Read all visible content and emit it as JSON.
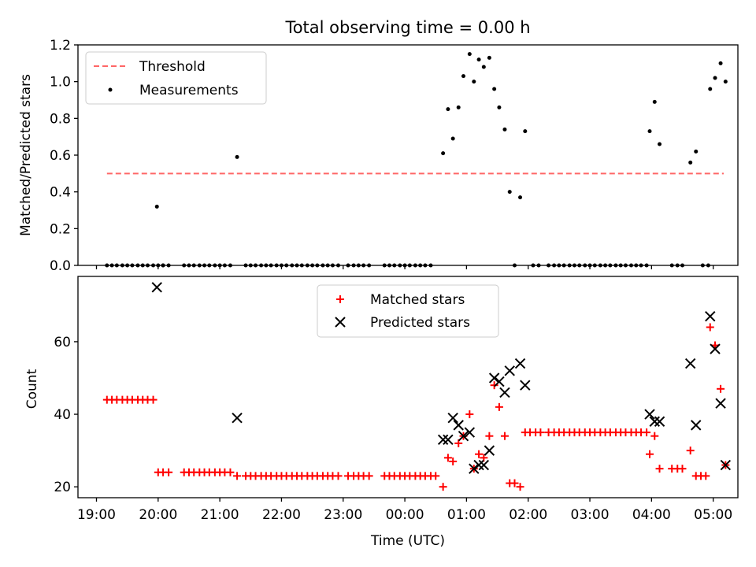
{
  "figure": {
    "title": "Total observing time = 0.00 h"
  },
  "chart_data": [
    {
      "type": "scatter",
      "title": "Total observing time = 0.00 h",
      "xlabel": "",
      "ylabel": "Matched/Predicted stars",
      "x_unit": "hours since 00:00 UTC (negative = previous evening)",
      "xlim": [
        -5.3,
        5.4
      ],
      "ylim": [
        0,
        1.2
      ],
      "yticks": [
        0.0,
        0.2,
        0.4,
        0.6,
        0.8,
        1.0,
        1.2
      ],
      "ytick_labels": [
        "0.0",
        "0.2",
        "0.4",
        "0.6",
        "0.8",
        "1.0",
        "1.2"
      ],
      "grid": false,
      "legend": {
        "position": "upper left",
        "entries": [
          {
            "label": "Threshold",
            "color": "#ff6666",
            "marker": "dashed-line"
          },
          {
            "label": "Measurements",
            "color": "#000000",
            "marker": "dot"
          }
        ]
      },
      "threshold": {
        "name": "Threshold",
        "value": 0.5,
        "x_start": -4.83,
        "x_end": 5.17,
        "color": "#ff6666"
      },
      "series": [
        {
          "name": "Measurements",
          "color": "#000000",
          "marker": "dot",
          "points": [
            [
              -4.83,
              0
            ],
            [
              -4.75,
              0
            ],
            [
              -4.67,
              0
            ],
            [
              -4.58,
              0
            ],
            [
              -4.5,
              0
            ],
            [
              -4.42,
              0
            ],
            [
              -4.33,
              0
            ],
            [
              -4.25,
              0
            ],
            [
              -4.17,
              0
            ],
            [
              -4.08,
              0
            ],
            [
              -4.0,
              0
            ],
            [
              -3.92,
              0
            ],
            [
              -4.02,
              0.32
            ],
            [
              -3.92,
              0
            ],
            [
              -3.83,
              0
            ],
            [
              -3.58,
              0
            ],
            [
              -3.5,
              0
            ],
            [
              -3.42,
              0
            ],
            [
              -3.33,
              0
            ],
            [
              -3.25,
              0
            ],
            [
              -3.17,
              0
            ],
            [
              -3.08,
              0
            ],
            [
              -3.0,
              0
            ],
            [
              -2.92,
              0
            ],
            [
              -2.83,
              0
            ],
            [
              -2.72,
              0.59
            ],
            [
              -2.58,
              0
            ],
            [
              -2.5,
              0
            ],
            [
              -2.42,
              0
            ],
            [
              -2.33,
              0
            ],
            [
              -2.25,
              0
            ],
            [
              -2.17,
              0
            ],
            [
              -2.08,
              0
            ],
            [
              -2.0,
              0
            ],
            [
              -1.92,
              0
            ],
            [
              -1.83,
              0
            ],
            [
              -1.75,
              0
            ],
            [
              -1.67,
              0
            ],
            [
              -1.58,
              0
            ],
            [
              -1.5,
              0
            ],
            [
              -1.42,
              0
            ],
            [
              -1.33,
              0
            ],
            [
              -1.25,
              0
            ],
            [
              -1.17,
              0
            ],
            [
              -1.08,
              0
            ],
            [
              -0.92,
              0
            ],
            [
              -0.83,
              0
            ],
            [
              -0.75,
              0
            ],
            [
              -0.67,
              0
            ],
            [
              -0.58,
              0
            ],
            [
              -0.33,
              0
            ],
            [
              -0.25,
              0
            ],
            [
              -0.17,
              0
            ],
            [
              -0.08,
              0
            ],
            [
              0.0,
              0
            ],
            [
              0.08,
              0
            ],
            [
              0.17,
              0
            ],
            [
              0.25,
              0
            ],
            [
              0.33,
              0
            ],
            [
              0.42,
              0
            ],
            [
              0.62,
              0.61
            ],
            [
              0.7,
              0.85
            ],
            [
              0.78,
              0.69
            ],
            [
              0.87,
              0.86
            ],
            [
              0.95,
              1.03
            ],
            [
              1.05,
              1.15
            ],
            [
              1.12,
              1.0
            ],
            [
              1.2,
              1.12
            ],
            [
              1.28,
              1.08
            ],
            [
              1.37,
              1.13
            ],
            [
              1.45,
              0.96
            ],
            [
              1.53,
              0.86
            ],
            [
              1.62,
              0.74
            ],
            [
              1.7,
              0.4
            ],
            [
              1.78,
              0.0
            ],
            [
              1.87,
              0.37
            ],
            [
              1.95,
              0.73
            ],
            [
              2.08,
              0
            ],
            [
              2.17,
              0
            ],
            [
              2.33,
              0
            ],
            [
              2.42,
              0
            ],
            [
              2.5,
              0
            ],
            [
              2.58,
              0
            ],
            [
              2.67,
              0
            ],
            [
              2.75,
              0
            ],
            [
              2.83,
              0
            ],
            [
              2.92,
              0
            ],
            [
              3.0,
              0
            ],
            [
              3.08,
              0
            ],
            [
              3.17,
              0
            ],
            [
              3.25,
              0
            ],
            [
              3.33,
              0
            ],
            [
              3.42,
              0
            ],
            [
              3.5,
              0
            ],
            [
              3.58,
              0
            ],
            [
              3.67,
              0
            ],
            [
              3.75,
              0
            ],
            [
              3.83,
              0
            ],
            [
              3.92,
              0
            ],
            [
              3.97,
              0.73
            ],
            [
              4.05,
              0.89
            ],
            [
              4.13,
              0.66
            ],
            [
              4.33,
              0
            ],
            [
              4.42,
              0
            ],
            [
              4.5,
              0
            ],
            [
              4.63,
              0.56
            ],
            [
              4.72,
              0.62
            ],
            [
              4.83,
              0
            ],
            [
              4.92,
              0
            ],
            [
              4.95,
              0.96
            ],
            [
              5.03,
              1.02
            ],
            [
              5.12,
              1.1
            ],
            [
              5.2,
              1.0
            ]
          ]
        }
      ]
    },
    {
      "type": "scatter",
      "title": "",
      "xlabel": "Time (UTC)",
      "ylabel": "Count",
      "x_unit": "hours since 00:00 UTC (negative = previous evening)",
      "xlim": [
        -5.3,
        5.4
      ],
      "ylim": [
        17,
        78
      ],
      "xticks": [
        -5,
        -4,
        -3,
        -2,
        -1,
        0,
        1,
        2,
        3,
        4,
        5
      ],
      "xtick_labels": [
        "19:00",
        "20:00",
        "21:00",
        "22:00",
        "23:00",
        "00:00",
        "01:00",
        "02:00",
        "03:00",
        "04:00",
        "05:00"
      ],
      "yticks": [
        20,
        40,
        60
      ],
      "ytick_labels": [
        "20",
        "40",
        "60"
      ],
      "grid": false,
      "legend": {
        "position": "upper center",
        "entries": [
          {
            "label": "Matched stars",
            "color": "#ff0000",
            "marker": "plus"
          },
          {
            "label": "Predicted stars",
            "color": "#000000",
            "marker": "x"
          }
        ]
      },
      "series": [
        {
          "name": "Matched stars",
          "color": "#ff0000",
          "marker": "plus",
          "points": [
            [
              -4.83,
              44
            ],
            [
              -4.75,
              44
            ],
            [
              -4.67,
              44
            ],
            [
              -4.58,
              44
            ],
            [
              -4.5,
              44
            ],
            [
              -4.42,
              44
            ],
            [
              -4.33,
              44
            ],
            [
              -4.25,
              44
            ],
            [
              -4.17,
              44
            ],
            [
              -4.08,
              44
            ],
            [
              -4.0,
              24
            ],
            [
              -3.92,
              24
            ],
            [
              -3.83,
              24
            ],
            [
              -3.58,
              24
            ],
            [
              -3.5,
              24
            ],
            [
              -3.42,
              24
            ],
            [
              -3.33,
              24
            ],
            [
              -3.25,
              24
            ],
            [
              -3.17,
              24
            ],
            [
              -3.08,
              24
            ],
            [
              -3.0,
              24
            ],
            [
              -2.92,
              24
            ],
            [
              -2.83,
              24
            ],
            [
              -2.72,
              23
            ],
            [
              -2.58,
              23
            ],
            [
              -2.5,
              23
            ],
            [
              -2.42,
              23
            ],
            [
              -2.33,
              23
            ],
            [
              -2.25,
              23
            ],
            [
              -2.17,
              23
            ],
            [
              -2.08,
              23
            ],
            [
              -2.0,
              23
            ],
            [
              -1.92,
              23
            ],
            [
              -1.83,
              23
            ],
            [
              -1.75,
              23
            ],
            [
              -1.67,
              23
            ],
            [
              -1.58,
              23
            ],
            [
              -1.5,
              23
            ],
            [
              -1.42,
              23
            ],
            [
              -1.33,
              23
            ],
            [
              -1.25,
              23
            ],
            [
              -1.17,
              23
            ],
            [
              -1.08,
              23
            ],
            [
              -0.92,
              23
            ],
            [
              -0.83,
              23
            ],
            [
              -0.75,
              23
            ],
            [
              -0.67,
              23
            ],
            [
              -0.58,
              23
            ],
            [
              -0.33,
              23
            ],
            [
              -0.25,
              23
            ],
            [
              -0.17,
              23
            ],
            [
              -0.08,
              23
            ],
            [
              0.0,
              23
            ],
            [
              0.08,
              23
            ],
            [
              0.17,
              23
            ],
            [
              0.25,
              23
            ],
            [
              0.33,
              23
            ],
            [
              0.42,
              23
            ],
            [
              0.5,
              23
            ],
            [
              0.62,
              20
            ],
            [
              0.7,
              28
            ],
            [
              0.78,
              27
            ],
            [
              0.87,
              32
            ],
            [
              0.95,
              34
            ],
            [
              1.05,
              40
            ],
            [
              1.12,
              25
            ],
            [
              1.2,
              29
            ],
            [
              1.28,
              28
            ],
            [
              1.37,
              34
            ],
            [
              1.45,
              48
            ],
            [
              1.53,
              42
            ],
            [
              1.62,
              34
            ],
            [
              1.7,
              21
            ],
            [
              1.78,
              21
            ],
            [
              1.87,
              20
            ],
            [
              1.95,
              35
            ],
            [
              2.03,
              35
            ],
            [
              2.12,
              35
            ],
            [
              2.2,
              35
            ],
            [
              2.33,
              35
            ],
            [
              2.42,
              35
            ],
            [
              2.5,
              35
            ],
            [
              2.58,
              35
            ],
            [
              2.67,
              35
            ],
            [
              2.75,
              35
            ],
            [
              2.83,
              35
            ],
            [
              2.92,
              35
            ],
            [
              3.0,
              35
            ],
            [
              3.08,
              35
            ],
            [
              3.17,
              35
            ],
            [
              3.25,
              35
            ],
            [
              3.33,
              35
            ],
            [
              3.42,
              35
            ],
            [
              3.5,
              35
            ],
            [
              3.58,
              35
            ],
            [
              3.67,
              35
            ],
            [
              3.75,
              35
            ],
            [
              3.83,
              35
            ],
            [
              3.92,
              35
            ],
            [
              3.97,
              29
            ],
            [
              4.05,
              34
            ],
            [
              4.13,
              25
            ],
            [
              4.33,
              25
            ],
            [
              4.42,
              25
            ],
            [
              4.5,
              25
            ],
            [
              4.63,
              30
            ],
            [
              4.72,
              23
            ],
            [
              4.8,
              23
            ],
            [
              4.88,
              23
            ],
            [
              4.95,
              64
            ],
            [
              5.03,
              59
            ],
            [
              5.12,
              47
            ],
            [
              5.2,
              26
            ]
          ]
        },
        {
          "name": "Predicted stars",
          "color": "#000000",
          "marker": "x",
          "points": [
            [
              -4.02,
              75
            ],
            [
              -2.72,
              39
            ],
            [
              0.62,
              33
            ],
            [
              0.7,
              33
            ],
            [
              0.78,
              39
            ],
            [
              0.87,
              37
            ],
            [
              0.95,
              34
            ],
            [
              1.05,
              35
            ],
            [
              1.12,
              25
            ],
            [
              1.2,
              26
            ],
            [
              1.28,
              26
            ],
            [
              1.37,
              30
            ],
            [
              1.45,
              50
            ],
            [
              1.53,
              49
            ],
            [
              1.62,
              46
            ],
            [
              1.7,
              52
            ],
            [
              1.87,
              54
            ],
            [
              1.95,
              48
            ],
            [
              3.97,
              40
            ],
            [
              4.05,
              38
            ],
            [
              4.13,
              38
            ],
            [
              4.63,
              54
            ],
            [
              4.72,
              37
            ],
            [
              4.95,
              67
            ],
            [
              5.03,
              58
            ],
            [
              5.12,
              43
            ],
            [
              5.2,
              26
            ]
          ]
        }
      ]
    }
  ]
}
